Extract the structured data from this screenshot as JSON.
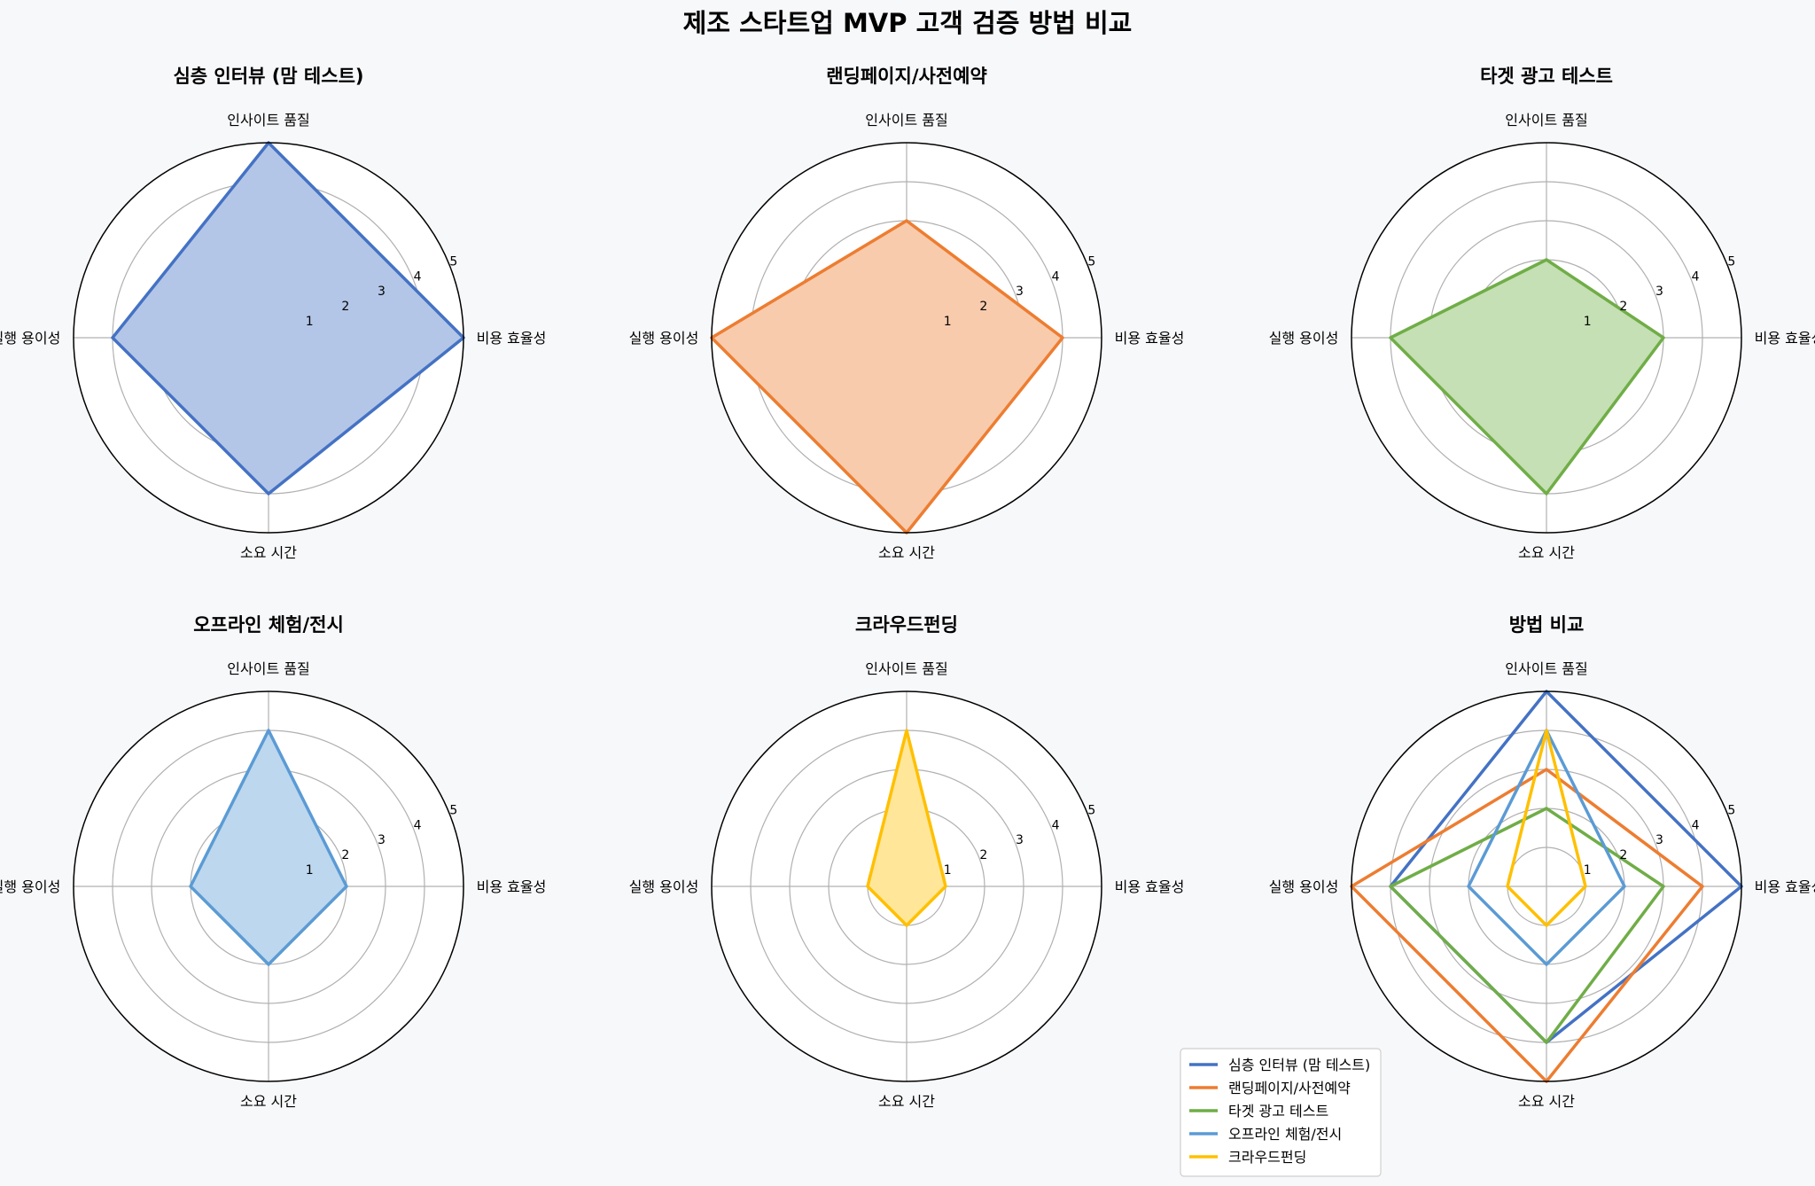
{
  "chart_data": {
    "type": "radar",
    "title": "제조 스타트업 MVP 고객 검증 방법 비교",
    "axes": [
      "인사이트 품질",
      "비용 효율성",
      "소요 시간",
      "실행 용이성"
    ],
    "rlim": [
      0,
      5
    ],
    "rticks": [
      1,
      2,
      3,
      4,
      5
    ],
    "grid": true,
    "legend_position": "lower-left of last panel",
    "series": [
      {
        "name": "심층 인터뷰 (맘 테스트)",
        "values": [
          5,
          5,
          4,
          4
        ],
        "color": "#4472c4"
      },
      {
        "name": "랜딩페이지/사전예약",
        "values": [
          3,
          4,
          5,
          5
        ],
        "color": "#ed7d31"
      },
      {
        "name": "타겟 광고 테스트",
        "values": [
          2,
          3,
          4,
          4
        ],
        "color": "#70ad47"
      },
      {
        "name": "오프라인 체험/전시",
        "values": [
          4,
          2,
          2,
          2
        ],
        "color": "#5b9bd5"
      },
      {
        "name": "크라우드펀딩",
        "values": [
          4,
          1,
          1,
          1
        ],
        "color": "#ffc000"
      }
    ],
    "panels": [
      {
        "title": "심층 인터뷰 (맘 테스트)",
        "series_index": [
          0
        ]
      },
      {
        "title": "랜딩페이지/사전예약",
        "series_index": [
          1
        ]
      },
      {
        "title": "타겟 광고 테스트",
        "series_index": [
          2
        ]
      },
      {
        "title": "오프라인 체험/전시",
        "series_index": [
          3
        ]
      },
      {
        "title": "크라우드펀딩",
        "series_index": [
          4
        ]
      },
      {
        "title": "방법 비교",
        "series_index": [
          0,
          1,
          2,
          3,
          4
        ]
      }
    ],
    "fill_colors": [
      "#b4c6e7",
      "#f8cbad",
      "#c5e0b4",
      "#bdd7ee",
      "#ffe699"
    ]
  }
}
